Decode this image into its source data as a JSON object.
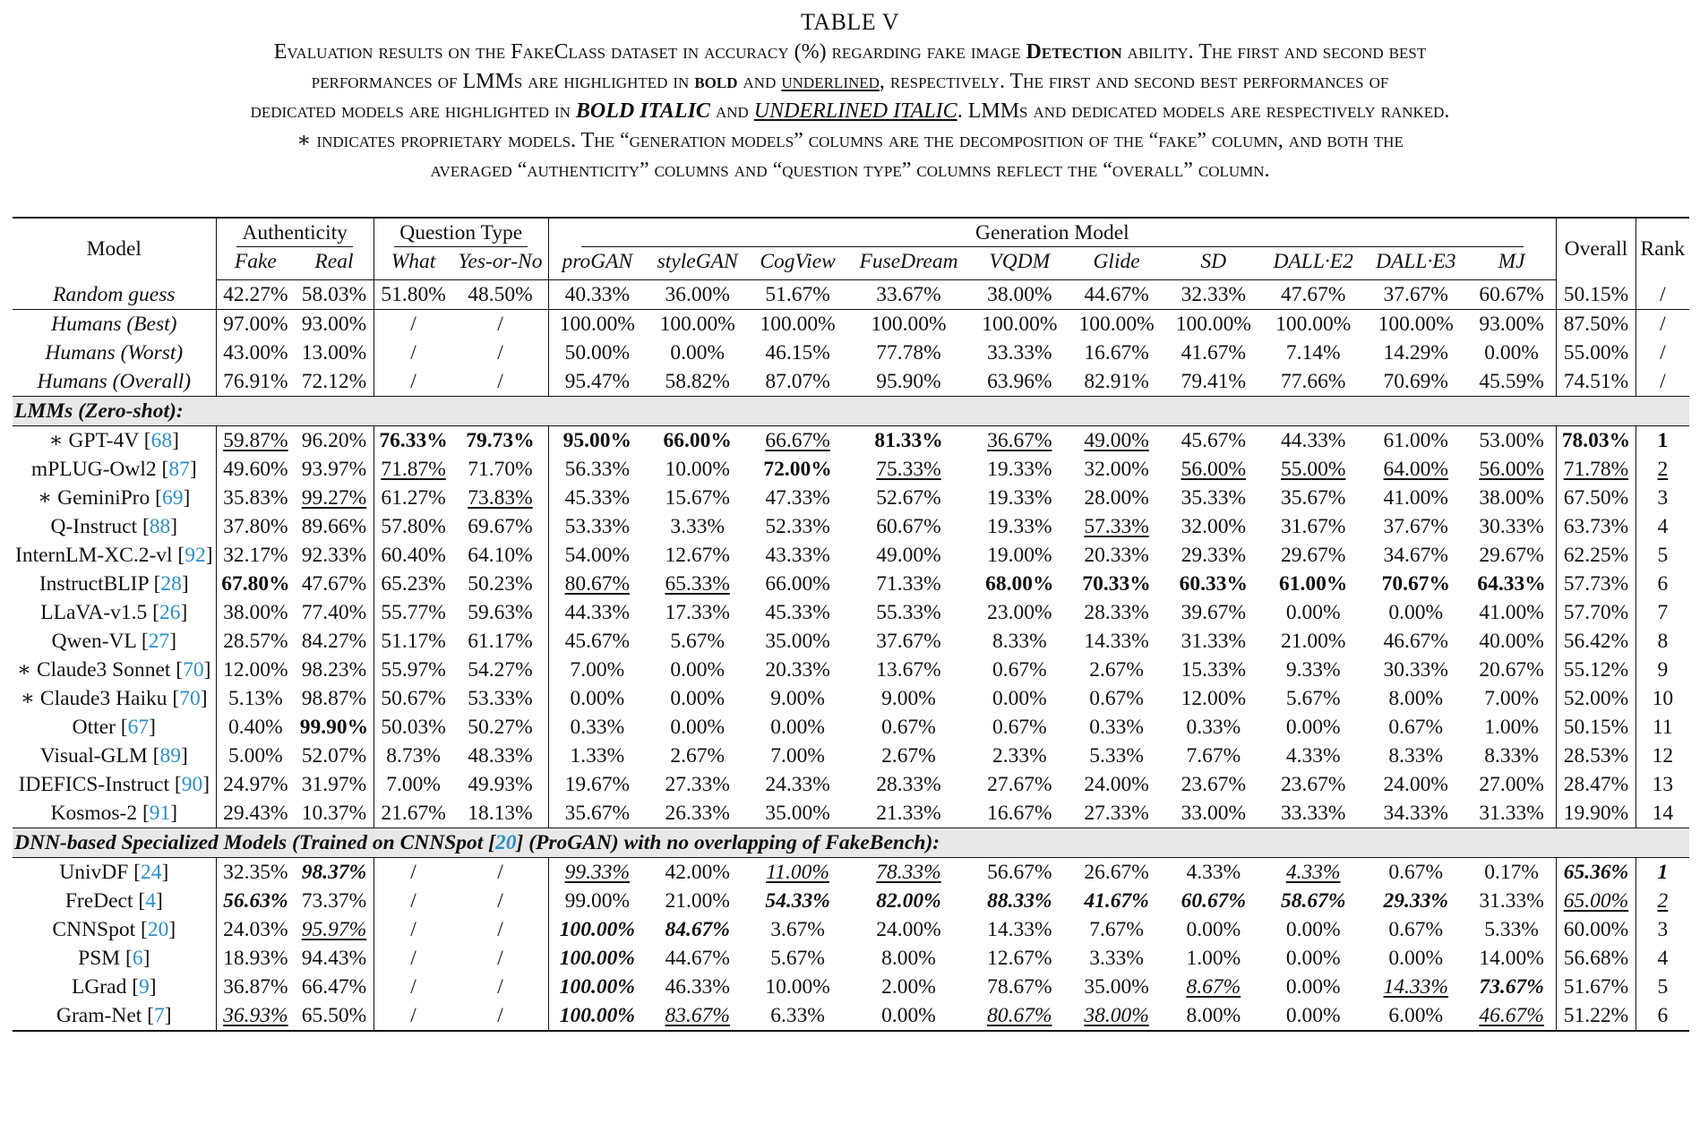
{
  "caption": {
    "label": "TABLE V",
    "line1_a": "Evaluation results on the FakeClass dataset in accuracy (%) regarding fake image ",
    "line1_b": "Detection",
    "line1_c": " ability. The first and second best",
    "line2_a": "performances of LMMs are highlighted in ",
    "line2_b": "bold",
    "line2_c": " and ",
    "line2_d": "underlined",
    "line2_e": ", respectively. The first and second best performances of",
    "line3_a": "dedicated models are highlighted in ",
    "line3_b": "BOLD ITALIC",
    "line3_c": " and ",
    "line3_d": "UNDERLINED ITALIC",
    "line3_e": ". LMMs and dedicated models are respectively ranked.",
    "line4": "∗ indicates proprietary models. The “generation models” columns are the decomposition of the “fake” column, and both the",
    "line5": "averaged “authenticity” columns and “question type” columns reflect the “overall” column."
  },
  "header": {
    "model": "Model",
    "authenticity": "Authenticity",
    "question_type": "Question Type",
    "generation_model": "Generation Model",
    "overall": "Overall",
    "rank": "Rank",
    "fake": "Fake",
    "real": "Real",
    "what": "What",
    "yesno": "Yes-or-No",
    "gens": [
      "proGAN",
      "styleGAN",
      "CogView",
      "FuseDream",
      "VQDM",
      "Glide",
      "SD",
      "DALL·E2",
      "DALL·E3",
      "MJ"
    ]
  },
  "sections": {
    "lmm": "LMMs (Zero-shot):",
    "dnn_a": "DNN-based Specialized Models (Trained on CNNSpot [",
    "dnn_ref": "20",
    "dnn_b": "] (ProGAN) with no overlapping of FakeBench):"
  },
  "baseline": [
    {
      "name": "Random guess",
      "cells": [
        "42.27%",
        "58.03%",
        "51.80%",
        "48.50%",
        "40.33%",
        "36.00%",
        "51.67%",
        "33.67%",
        "38.00%",
        "44.67%",
        "32.33%",
        "47.67%",
        "37.67%",
        "60.67%",
        "50.15%",
        "/"
      ]
    }
  ],
  "humans": [
    {
      "name": "Humans (Best)",
      "cells": [
        "97.00%",
        "93.00%",
        "/",
        "/",
        "100.00%",
        "100.00%",
        "100.00%",
        "100.00%",
        "100.00%",
        "100.00%",
        "100.00%",
        "100.00%",
        "100.00%",
        "93.00%",
        "87.50%",
        "/"
      ]
    },
    {
      "name": "Humans (Worst)",
      "cells": [
        "43.00%",
        "13.00%",
        "/",
        "/",
        "50.00%",
        "0.00%",
        "46.15%",
        "77.78%",
        "33.33%",
        "16.67%",
        "41.67%",
        "7.14%",
        "14.29%",
        "0.00%",
        "55.00%",
        "/"
      ]
    },
    {
      "name": "Humans (Overall)",
      "cells": [
        "76.91%",
        "72.12%",
        "/",
        "/",
        "95.47%",
        "58.82%",
        "87.07%",
        "95.90%",
        "63.96%",
        "82.91%",
        "79.41%",
        "77.66%",
        "70.69%",
        "45.59%",
        "74.51%",
        "/"
      ]
    }
  ],
  "lmms": [
    {
      "name": "∗ GPT-4V [",
      "ref": "68",
      "cells": [
        "59.87%",
        "96.20%",
        "76.33%",
        "79.73%",
        "95.00%",
        "66.00%",
        "66.67%",
        "81.33%",
        "36.67%",
        "49.00%",
        "45.67%",
        "44.33%",
        "61.00%",
        "53.00%",
        "78.03%",
        "1"
      ],
      "styles": [
        "u",
        "",
        "b",
        "b",
        "b",
        "b",
        "u",
        "b",
        "u",
        "u",
        "",
        "",
        "",
        "",
        "b",
        "b"
      ]
    },
    {
      "name": "mPLUG-Owl2 [",
      "ref": "87",
      "cells": [
        "49.60%",
        "93.97%",
        "71.87%",
        "71.70%",
        "56.33%",
        "10.00%",
        "72.00%",
        "75.33%",
        "19.33%",
        "32.00%",
        "56.00%",
        "55.00%",
        "64.00%",
        "56.00%",
        "71.78%",
        "2"
      ],
      "styles": [
        "",
        "",
        "u",
        "",
        "",
        "",
        "b",
        "u",
        "",
        "",
        "u",
        "u",
        "u",
        "u",
        "u",
        "u"
      ]
    },
    {
      "name": "∗ GeminiPro [",
      "ref": "69",
      "cells": [
        "35.83%",
        "99.27%",
        "61.27%",
        "73.83%",
        "45.33%",
        "15.67%",
        "47.33%",
        "52.67%",
        "19.33%",
        "28.00%",
        "35.33%",
        "35.67%",
        "41.00%",
        "38.00%",
        "67.50%",
        "3"
      ],
      "styles": [
        "",
        "u",
        "",
        "u",
        "",
        "",
        "",
        "",
        "",
        "",
        "",
        "",
        "",
        "",
        "",
        ""
      ]
    },
    {
      "name": "Q-Instruct [",
      "ref": "88",
      "cells": [
        "37.80%",
        "89.66%",
        "57.80%",
        "69.67%",
        "53.33%",
        "3.33%",
        "52.33%",
        "60.67%",
        "19.33%",
        "57.33%",
        "32.00%",
        "31.67%",
        "37.67%",
        "30.33%",
        "63.73%",
        "4"
      ],
      "styles": [
        "",
        "",
        "",
        "",
        "",
        "",
        "",
        "",
        "",
        "u",
        "",
        "",
        "",
        "",
        "",
        ""
      ]
    },
    {
      "name": "InternLM-XC.2-vl [",
      "ref": "92",
      "cells": [
        "32.17%",
        "92.33%",
        "60.40%",
        "64.10%",
        "54.00%",
        "12.67%",
        "43.33%",
        "49.00%",
        "19.00%",
        "20.33%",
        "29.33%",
        "29.67%",
        "34.67%",
        "29.67%",
        "62.25%",
        "5"
      ],
      "styles": [
        "",
        "",
        "",
        "",
        "",
        "",
        "",
        "",
        "",
        "",
        "",
        "",
        "",
        "",
        "",
        ""
      ]
    },
    {
      "name": "InstructBLIP [",
      "ref": "28",
      "cells": [
        "67.80%",
        "47.67%",
        "65.23%",
        "50.23%",
        "80.67%",
        "65.33%",
        "66.00%",
        "71.33%",
        "68.00%",
        "70.33%",
        "60.33%",
        "61.00%",
        "70.67%",
        "64.33%",
        "57.73%",
        "6"
      ],
      "styles": [
        "b",
        "",
        "",
        "",
        "u",
        "u",
        "",
        "",
        "b",
        "b",
        "b",
        "b",
        "b",
        "b",
        "",
        ""
      ]
    },
    {
      "name": "LLaVA-v1.5 [",
      "ref": "26",
      "cells": [
        "38.00%",
        "77.40%",
        "55.77%",
        "59.63%",
        "44.33%",
        "17.33%",
        "45.33%",
        "55.33%",
        "23.00%",
        "28.33%",
        "39.67%",
        "0.00%",
        "0.00%",
        "41.00%",
        "57.70%",
        "7"
      ],
      "styles": [
        "",
        "",
        "",
        "",
        "",
        "",
        "",
        "",
        "",
        "",
        "",
        "",
        "",
        "",
        "",
        ""
      ]
    },
    {
      "name": "Qwen-VL [",
      "ref": "27",
      "cells": [
        "28.57%",
        "84.27%",
        "51.17%",
        "61.17%",
        "45.67%",
        "5.67%",
        "35.00%",
        "37.67%",
        "8.33%",
        "14.33%",
        "31.33%",
        "21.00%",
        "46.67%",
        "40.00%",
        "56.42%",
        "8"
      ],
      "styles": [
        "",
        "",
        "",
        "",
        "",
        "",
        "",
        "",
        "",
        "",
        "",
        "",
        "",
        "",
        "",
        ""
      ]
    },
    {
      "name": "∗ Claude3 Sonnet [",
      "ref": "70",
      "cells": [
        "12.00%",
        "98.23%",
        "55.97%",
        "54.27%",
        "7.00%",
        "0.00%",
        "20.33%",
        "13.67%",
        "0.67%",
        "2.67%",
        "15.33%",
        "9.33%",
        "30.33%",
        "20.67%",
        "55.12%",
        "9"
      ],
      "styles": [
        "",
        "",
        "",
        "",
        "",
        "",
        "",
        "",
        "",
        "",
        "",
        "",
        "",
        "",
        "",
        ""
      ]
    },
    {
      "name": "∗ Claude3 Haiku [",
      "ref": "70",
      "cells": [
        "5.13%",
        "98.87%",
        "50.67%",
        "53.33%",
        "0.00%",
        "0.00%",
        "9.00%",
        "9.00%",
        "0.00%",
        "0.67%",
        "12.00%",
        "5.67%",
        "8.00%",
        "7.00%",
        "52.00%",
        "10"
      ],
      "styles": [
        "",
        "",
        "",
        "",
        "",
        "",
        "",
        "",
        "",
        "",
        "",
        "",
        "",
        "",
        "",
        ""
      ]
    },
    {
      "name": "Otter [",
      "ref": "67",
      "cells": [
        "0.40%",
        "99.90%",
        "50.03%",
        "50.27%",
        "0.33%",
        "0.00%",
        "0.00%",
        "0.67%",
        "0.67%",
        "0.33%",
        "0.33%",
        "0.00%",
        "0.67%",
        "1.00%",
        "50.15%",
        "11"
      ],
      "styles": [
        "",
        "b",
        "",
        "",
        "",
        "",
        "",
        "",
        "",
        "",
        "",
        "",
        "",
        "",
        "",
        ""
      ]
    },
    {
      "name": "Visual-GLM [",
      "ref": "89",
      "cells": [
        "5.00%",
        "52.07%",
        "8.73%",
        "48.33%",
        "1.33%",
        "2.67%",
        "7.00%",
        "2.67%",
        "2.33%",
        "5.33%",
        "7.67%",
        "4.33%",
        "8.33%",
        "8.33%",
        "28.53%",
        "12"
      ],
      "styles": [
        "",
        "",
        "",
        "",
        "",
        "",
        "",
        "",
        "",
        "",
        "",
        "",
        "",
        "",
        "",
        ""
      ]
    },
    {
      "name": "IDEFICS-Instruct [",
      "ref": "90",
      "cells": [
        "24.97%",
        "31.97%",
        "7.00%",
        "49.93%",
        "19.67%",
        "27.33%",
        "24.33%",
        "28.33%",
        "27.67%",
        "24.00%",
        "23.67%",
        "23.67%",
        "24.00%",
        "27.00%",
        "28.47%",
        "13"
      ],
      "styles": [
        "",
        "",
        "",
        "",
        "",
        "",
        "",
        "",
        "",
        "",
        "",
        "",
        "",
        "",
        "",
        ""
      ]
    },
    {
      "name": "Kosmos-2 [",
      "ref": "91",
      "cells": [
        "29.43%",
        "10.37%",
        "21.67%",
        "18.13%",
        "35.67%",
        "26.33%",
        "35.00%",
        "21.33%",
        "16.67%",
        "27.33%",
        "33.00%",
        "33.33%",
        "34.33%",
        "31.33%",
        "19.90%",
        "14"
      ],
      "styles": [
        "",
        "",
        "",
        "",
        "",
        "",
        "",
        "",
        "",
        "",
        "",
        "",
        "",
        "",
        "",
        ""
      ]
    }
  ],
  "dnns": [
    {
      "name": "UnivDF [",
      "ref": "24",
      "cells": [
        "32.35%",
        "98.37%",
        "/",
        "/",
        "99.33%",
        "42.00%",
        "11.00%",
        "78.33%",
        "56.67%",
        "26.67%",
        "4.33%",
        "4.33%",
        "0.67%",
        "0.17%",
        "65.36%",
        "1"
      ],
      "styles": [
        "",
        "bi",
        "",
        "",
        "ui",
        "",
        "ui",
        "ui",
        "",
        "",
        "",
        "ui",
        "",
        "",
        "bi",
        "bi"
      ]
    },
    {
      "name": "FreDect [",
      "ref": "4",
      "cells": [
        "56.63%",
        "73.37%",
        "/",
        "/",
        "99.00%",
        "21.00%",
        "54.33%",
        "82.00%",
        "88.33%",
        "41.67%",
        "60.67%",
        "58.67%",
        "29.33%",
        "31.33%",
        "65.00%",
        "2"
      ],
      "styles": [
        "bi",
        "",
        "",
        "",
        "",
        "",
        "bi",
        "bi",
        "bi",
        "bi",
        "bi",
        "bi",
        "bi",
        "",
        "ui",
        "ui"
      ]
    },
    {
      "name": "CNNSpot [",
      "ref": "20",
      "cells": [
        "24.03%",
        "95.97%",
        "/",
        "/",
        "100.00%",
        "84.67%",
        "3.67%",
        "24.00%",
        "14.33%",
        "7.67%",
        "0.00%",
        "0.00%",
        "0.67%",
        "5.33%",
        "60.00%",
        "3"
      ],
      "styles": [
        "",
        "ui",
        "",
        "",
        "bi",
        "bi",
        "",
        "",
        "",
        "",
        "",
        "",
        "",
        "",
        "",
        ""
      ]
    },
    {
      "name": "PSM [",
      "ref": "6",
      "cells": [
        "18.93%",
        "94.43%",
        "/",
        "/",
        "100.00%",
        "44.67%",
        "5.67%",
        "8.00%",
        "12.67%",
        "3.33%",
        "1.00%",
        "0.00%",
        "0.00%",
        "14.00%",
        "56.68%",
        "4"
      ],
      "styles": [
        "",
        "",
        "",
        "",
        "bi",
        "",
        "",
        "",
        "",
        "",
        "",
        "",
        "",
        "",
        "",
        ""
      ]
    },
    {
      "name": "LGrad [",
      "ref": "9",
      "cells": [
        "36.87%",
        "66.47%",
        "/",
        "/",
        "100.00%",
        "46.33%",
        "10.00%",
        "2.00%",
        "78.67%",
        "35.00%",
        "8.67%",
        "0.00%",
        "14.33%",
        "73.67%",
        "51.67%",
        "5"
      ],
      "styles": [
        "",
        "",
        "",
        "",
        "bi",
        "",
        "",
        "",
        "",
        "",
        "ui",
        "",
        "ui",
        "bi",
        "",
        ""
      ]
    },
    {
      "name": "Gram-Net [",
      "ref": "7",
      "cells": [
        "36.93%",
        "65.50%",
        "/",
        "/",
        "100.00%",
        "83.67%",
        "6.33%",
        "0.00%",
        "80.67%",
        "38.00%",
        "8.00%",
        "0.00%",
        "6.00%",
        "46.67%",
        "51.22%",
        "6"
      ],
      "styles": [
        "ui",
        "",
        "",
        "",
        "bi",
        "ui",
        "",
        "",
        "ui",
        "ui",
        "",
        "",
        "",
        "ui",
        "",
        ""
      ]
    }
  ]
}
